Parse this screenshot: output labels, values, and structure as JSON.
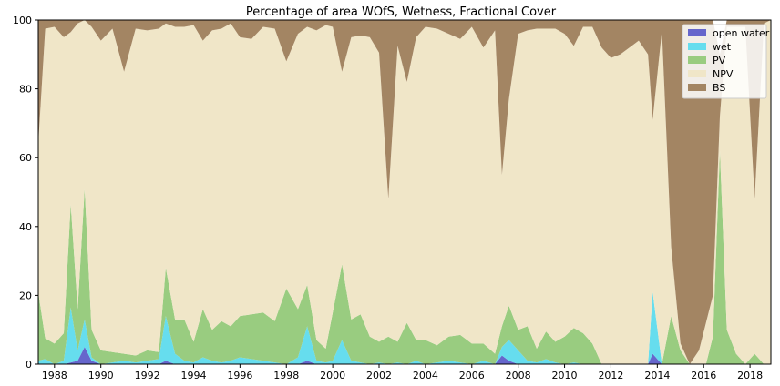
{
  "chart_data": {
    "type": "area",
    "stacked": true,
    "title": "Percentage of area WOfS, Wetness, Fractional Cover",
    "xlabel": "",
    "ylabel": "",
    "xlim": [
      1987.3,
      2018.9
    ],
    "ylim": [
      0,
      100
    ],
    "x_ticks": [
      1988,
      1990,
      1992,
      1994,
      1996,
      1998,
      2000,
      2002,
      2004,
      2006,
      2008,
      2010,
      2012,
      2014,
      2016,
      2018
    ],
    "y_ticks": [
      0,
      20,
      40,
      60,
      80,
      100
    ],
    "grid": false,
    "legend": "top-right",
    "x": [
      1987.3,
      1987.6,
      1988.0,
      1988.4,
      1988.7,
      1989.0,
      1989.3,
      1989.6,
      1990.0,
      1990.5,
      1991.0,
      1991.5,
      1992.0,
      1992.5,
      1992.8,
      1993.2,
      1993.6,
      1994.0,
      1994.4,
      1994.8,
      1995.2,
      1995.6,
      1996.0,
      1996.5,
      1997.0,
      1997.5,
      1998.0,
      1998.5,
      1998.9,
      1999.3,
      1999.7,
      2000.0,
      2000.4,
      2000.8,
      2001.2,
      2001.6,
      2002.0,
      2002.4,
      2002.8,
      2003.2,
      2003.6,
      2004.0,
      2004.5,
      2005.0,
      2005.5,
      2006.0,
      2006.5,
      2007.0,
      2007.3,
      2007.6,
      2008.0,
      2008.4,
      2008.8,
      2009.2,
      2009.6,
      2010.0,
      2010.4,
      2010.8,
      2011.2,
      2011.6,
      2012.0,
      2012.4,
      2012.8,
      2013.2,
      2013.6,
      2013.8,
      2014.2,
      2014.6,
      2015.0,
      2015.4,
      2015.8,
      2016.1,
      2016.4,
      2016.7,
      2017.0,
      2017.4,
      2017.8,
      2018.2,
      2018.6,
      2018.9
    ],
    "series": [
      {
        "name": "open water",
        "color": "#6666cc",
        "values": [
          0,
          0,
          0,
          0,
          0.5,
          1,
          5,
          1,
          0,
          0,
          0,
          0,
          0,
          0,
          1,
          0,
          0,
          0,
          0,
          0,
          0,
          0,
          0,
          0,
          0,
          0,
          0,
          0,
          1,
          0,
          0,
          0,
          0,
          0,
          0,
          0,
          0,
          0,
          0,
          0,
          0,
          0,
          0,
          0,
          0,
          0,
          0,
          0,
          2.5,
          1,
          0,
          0,
          0,
          0,
          0,
          0,
          0,
          0,
          0,
          0,
          0,
          0,
          0,
          0,
          0,
          3,
          0,
          0,
          0,
          0,
          0,
          0,
          0,
          0,
          0,
          0,
          0,
          0,
          0,
          0
        ]
      },
      {
        "name": "wet",
        "color": "#66ddee",
        "values": [
          1,
          1.5,
          0,
          1,
          16,
          3,
          8,
          1,
          0,
          0.5,
          1,
          0.5,
          1,
          1.5,
          13,
          3,
          1,
          0.5,
          2,
          1,
          0.5,
          1,
          2,
          1.5,
          1,
          0.5,
          0,
          2,
          10,
          1,
          0.5,
          1,
          7,
          1,
          0.5,
          0,
          0.5,
          0,
          0.5,
          0,
          1,
          0,
          0.5,
          1,
          0.5,
          0,
          1,
          0,
          2.5,
          6,
          4,
          1,
          0.5,
          1.5,
          0.5,
          0,
          0.5,
          0,
          0,
          0,
          0,
          0,
          0,
          0,
          0,
          18,
          0,
          0,
          0,
          0,
          0,
          0,
          0,
          0,
          0,
          0,
          0,
          0,
          0,
          0
        ]
      },
      {
        "name": "PV",
        "color": "#99cc80",
        "values": [
          20,
          6,
          6,
          8,
          30,
          12,
          38,
          8,
          4,
          3,
          2,
          2,
          3,
          2,
          14,
          10,
          12,
          6,
          14,
          9,
          12,
          10,
          12,
          13,
          14,
          12,
          22,
          14,
          12,
          6,
          4,
          14,
          22,
          12,
          14,
          8,
          6,
          8,
          6,
          12,
          6,
          7,
          5,
          7,
          8,
          6,
          5,
          3,
          6,
          10,
          6,
          10,
          4,
          8,
          6,
          8,
          10,
          9,
          6,
          0,
          0,
          0,
          0,
          0,
          0,
          0,
          0,
          14,
          4,
          0,
          0,
          0,
          8,
          62,
          10,
          3,
          0,
          3,
          0,
          0
        ]
      },
      {
        "name": "NPV",
        "color": "#f0e6c8",
        "values": [
          43,
          90,
          92,
          86,
          50,
          83,
          52,
          88,
          90,
          94,
          82,
          95,
          93,
          94,
          71,
          85,
          85,
          92,
          78,
          87,
          85,
          88,
          81,
          80,
          83,
          85,
          66,
          80,
          75,
          90,
          94,
          83,
          56,
          82,
          81,
          87,
          84,
          40,
          86,
          70,
          88,
          91,
          92,
          88,
          86,
          92,
          86,
          94,
          44,
          60,
          86,
          86,
          93,
          88,
          91,
          88,
          82,
          89,
          92,
          92,
          89,
          90,
          92,
          94,
          90,
          50,
          97,
          20,
          2,
          0,
          4,
          12,
          12,
          10,
          88,
          95,
          98,
          45,
          99,
          100
        ]
      },
      {
        "name": "BS",
        "color": "#a38563",
        "values": [
          36,
          2.5,
          2,
          5,
          3.5,
          1,
          0,
          2,
          6,
          2.5,
          15,
          2.5,
          3,
          2.5,
          1,
          2,
          2,
          1.5,
          6,
          3,
          2.5,
          1,
          5,
          5.5,
          2,
          2.5,
          12,
          4,
          2,
          3,
          1.5,
          2,
          15,
          5,
          4.5,
          5,
          9.5,
          52,
          7.5,
          18,
          5,
          2,
          2.5,
          4,
          5.5,
          2,
          8,
          3,
          45,
          23,
          4,
          3,
          2.5,
          2.5,
          2.5,
          4,
          7.5,
          2,
          2,
          8,
          11,
          10,
          8,
          6,
          10,
          29,
          3,
          66,
          94,
          100,
          96,
          88,
          80,
          18,
          2,
          2,
          2,
          52,
          1,
          0
        ]
      }
    ]
  }
}
